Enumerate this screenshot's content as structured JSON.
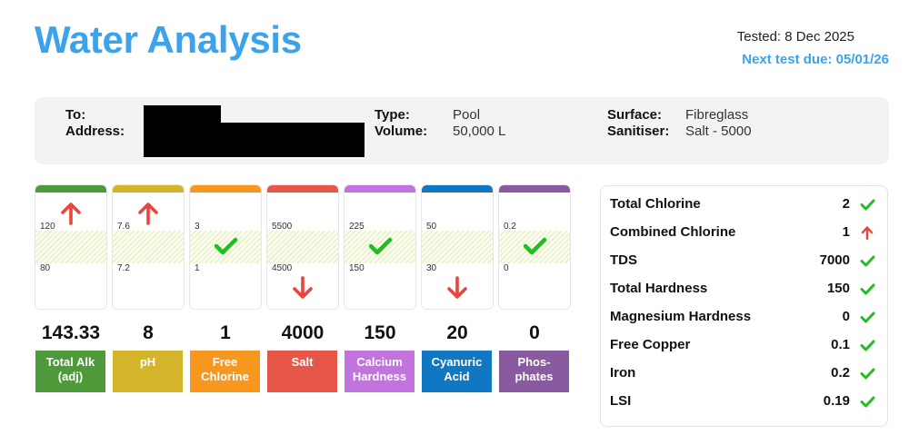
{
  "header": {
    "title": "Water Analysis",
    "tested": "Tested: 8 Dec 2025",
    "next_test_due": "Next test due: 05/01/26"
  },
  "customer": {
    "to_label": "To:",
    "to_value": "[redacted]",
    "address_label": "Address:",
    "address_value": "[redacted]",
    "type_label": "Type:",
    "type_value": "Pool",
    "volume_label": "Volume:",
    "volume_value": "50,000 L",
    "surface_label": "Surface:",
    "surface_value": "Fibreglass",
    "sanitiser_label": "Sanitiser:",
    "sanitiser_value": "Salt - 5000"
  },
  "colors": {
    "brand": "#3aa3ec",
    "ok": "#1fbf1f",
    "alert": "#e8453c"
  },
  "gauges": [
    {
      "name": "Total Alk (adj)",
      "line1": "Total Alk",
      "line2": "(adj)",
      "reading": "143.33",
      "high": "120",
      "low": "80",
      "status": "high",
      "color": "#4e9a3a"
    },
    {
      "name": "pH",
      "line1": "pH",
      "line2": "",
      "reading": "8",
      "high": "7.6",
      "low": "7.2",
      "status": "high",
      "color": "#d4b52a"
    },
    {
      "name": "Free Chlorine",
      "line1": "Free",
      "line2": "Chlorine",
      "reading": "1",
      "high": "3",
      "low": "1",
      "status": "ok",
      "color": "#f7971e"
    },
    {
      "name": "Salt",
      "line1": "Salt",
      "line2": "",
      "reading": "4000",
      "high": "5500",
      "low": "4500",
      "status": "low",
      "color": "#e6574a"
    },
    {
      "name": "Calcium Hardness",
      "line1": "Calcium",
      "line2": "Hardness",
      "reading": "150",
      "high": "225",
      "low": "150",
      "status": "ok",
      "color": "#c274de"
    },
    {
      "name": "Cyanuric Acid",
      "line1": "Cyanuric",
      "line2": "Acid",
      "reading": "20",
      "high": "50",
      "low": "30",
      "status": "low",
      "color": "#1177c2"
    },
    {
      "name": "Phosphates",
      "line1": "Phos-",
      "line2": "phates",
      "reading": "0",
      "high": "0.2",
      "low": "0",
      "status": "ok",
      "color": "#8a5aa0"
    }
  ],
  "side_results": [
    {
      "name": "Total Chlorine",
      "value": "2",
      "status": "ok"
    },
    {
      "name": "Combined Chlorine",
      "value": "1",
      "status": "high"
    },
    {
      "name": "TDS",
      "value": "7000",
      "status": "ok"
    },
    {
      "name": "Total Hardness",
      "value": "150",
      "status": "ok"
    },
    {
      "name": "Magnesium Hardness",
      "value": "0",
      "status": "ok"
    },
    {
      "name": "Free Copper",
      "value": "0.1",
      "status": "ok"
    },
    {
      "name": "Iron",
      "value": "0.2",
      "status": "ok"
    },
    {
      "name": "LSI",
      "value": "0.19",
      "status": "ok"
    }
  ],
  "icons": {
    "ok": "check-icon",
    "high": "arrow-up-icon",
    "low": "arrow-down-icon"
  }
}
